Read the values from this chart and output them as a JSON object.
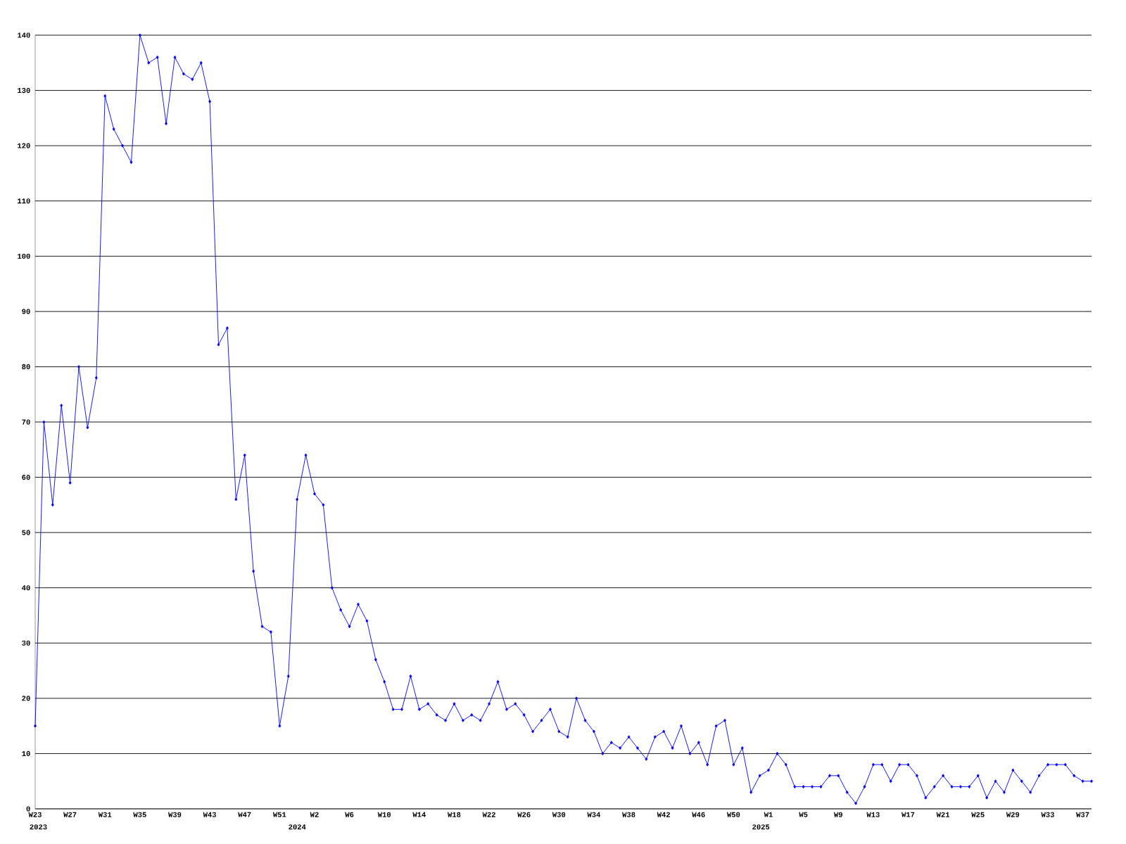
{
  "chart_data": {
    "type": "line",
    "categories": [
      "W23",
      null,
      null,
      null,
      "W27",
      null,
      null,
      null,
      "W31",
      null,
      null,
      null,
      "W35",
      null,
      null,
      null,
      "W39",
      null,
      null,
      null,
      "W43",
      null,
      null,
      null,
      "W47",
      null,
      null,
      null,
      "W51",
      null,
      null,
      null,
      "W2",
      null,
      null,
      null,
      "W6",
      null,
      null,
      null,
      "W10",
      null,
      null,
      null,
      "W14",
      null,
      null,
      null,
      "W18",
      null,
      null,
      null,
      "W22",
      null,
      null,
      null,
      "W26",
      null,
      null,
      null,
      "W30",
      null,
      null,
      null,
      "W34",
      null,
      null,
      null,
      "W38",
      null,
      null,
      null,
      "W42",
      null,
      null,
      null,
      "W46",
      null,
      null,
      null,
      "W50",
      null,
      null,
      null,
      "W1",
      null,
      null,
      null,
      "W5",
      null,
      null,
      null,
      "W9",
      null,
      null,
      null,
      "W13",
      null,
      null,
      null,
      "W17",
      null,
      null,
      null,
      "W21",
      null,
      null,
      null,
      "W25",
      null,
      null,
      null,
      "W29",
      null,
      null,
      null,
      "W33",
      null,
      null,
      null,
      "W37",
      null
    ],
    "values": [
      15,
      70,
      55,
      73,
      59,
      80,
      69,
      78,
      129,
      123,
      120,
      117,
      140,
      135,
      136,
      124,
      136,
      133,
      132,
      135,
      128,
      84,
      87,
      56,
      64,
      43,
      33,
      32,
      15,
      24,
      56,
      64,
      57,
      55,
      40,
      36,
      33,
      37,
      34,
      27,
      23,
      18,
      18,
      24,
      18,
      19,
      17,
      16,
      19,
      16,
      17,
      16,
      19,
      23,
      18,
      19,
      17,
      14,
      16,
      18,
      14,
      13,
      20,
      16,
      14,
      10,
      12,
      11,
      13,
      11,
      9,
      13,
      14,
      11,
      15,
      10,
      12,
      8,
      15,
      16,
      8,
      11,
      3,
      6,
      7,
      10,
      8,
      4,
      4,
      4,
      4,
      6,
      6,
      3,
      1,
      4,
      8,
      8,
      5,
      8,
      8,
      6,
      2,
      4,
      6,
      4,
      4,
      4,
      6,
      2,
      5,
      3,
      7,
      5,
      3,
      6,
      8,
      8,
      8,
      6,
      5,
      5
    ],
    "color": "#0000ff",
    "marker": "diamond",
    "grid": "y",
    "ylim": [
      0,
      140
    ],
    "yticks": [
      0,
      10,
      20,
      30,
      40,
      50,
      60,
      70,
      80,
      90,
      100,
      110,
      120,
      130,
      140
    ],
    "annotations": [
      "2023",
      "2024",
      "2025"
    ]
  }
}
